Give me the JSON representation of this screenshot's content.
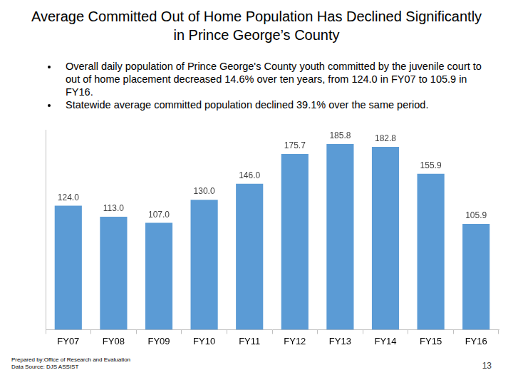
{
  "chart_data": {
    "type": "bar",
    "title": "Average Committed Out of Home Population Has Declined Significantly in Prince George’s County",
    "bullets": [
      "Overall daily population of Prince George's County youth committed by the juvenile court to out of home placement decreased 14.6% over ten years, from 124.0 in FY07 to 105.9 in FY16.",
      "Statewide average committed population declined 39.1% over the same period."
    ],
    "categories": [
      "FY07",
      "FY08",
      "FY09",
      "FY10",
      "FY11",
      "FY12",
      "FY13",
      "FY14",
      "FY15",
      "FY16"
    ],
    "values": [
      124.0,
      113.0,
      107.0,
      130.0,
      146.0,
      175.7,
      185.8,
      182.8,
      155.9,
      105.9
    ],
    "value_labels": [
      "124.0",
      "113.0",
      "107.0",
      "130.0",
      "146.0",
      "175.7",
      "185.8",
      "182.8",
      "155.9",
      "105.9"
    ],
    "color": "#5b9bd5",
    "ylim": [
      0,
      200
    ],
    "grid": false,
    "data_labels": true,
    "tick_labels": "x",
    "footer": [
      "Prepared by:Office of Research and Evaluation",
      "Data Source: DJS ASSIST"
    ],
    "page_number": "13"
  }
}
